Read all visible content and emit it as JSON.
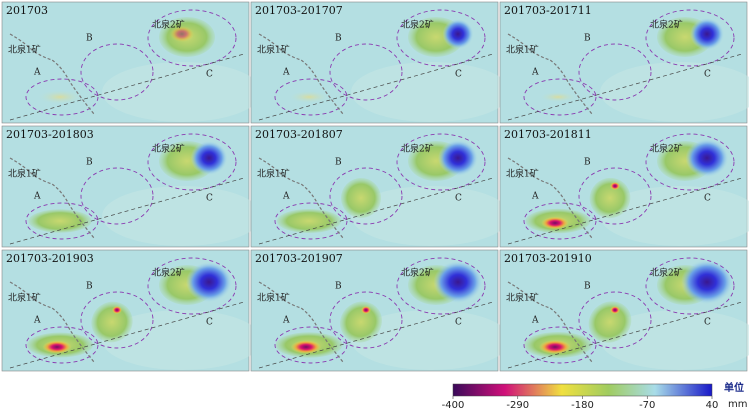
{
  "panels": [
    {
      "title": "201703"
    },
    {
      "title": "201703-201707"
    },
    {
      "title": "201703-201711"
    },
    {
      "title": "201703-201803"
    },
    {
      "title": "201703-201807"
    },
    {
      "title": "201703-201811"
    },
    {
      "title": "201703-201903"
    },
    {
      "title": "201703-201907"
    },
    {
      "title": "201703-201910"
    }
  ],
  "labels": {
    "mine1": "北泉1矿",
    "mine2": "北泉2矿",
    "a": "A",
    "b": "B",
    "c": "C"
  },
  "colorbar": {
    "range": [
      -400,
      40
    ],
    "ticks": [
      -400,
      -290,
      -180,
      -70,
      40
    ],
    "unit_title": "单位",
    "unit": "mm"
  }
}
